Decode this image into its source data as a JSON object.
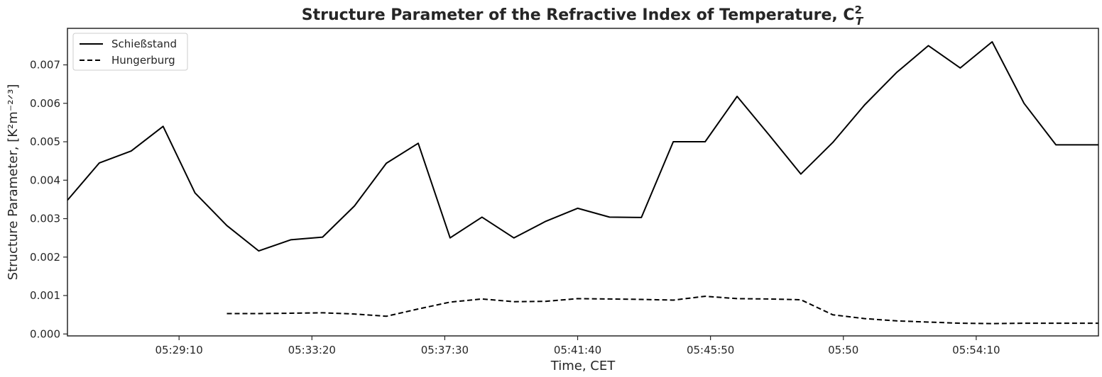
{
  "chart_data": {
    "type": "line",
    "title": "Structure Parameter of the Refractive Index of Temperature, C",
    "title_sup": "2",
    "title_sub": "T",
    "xlabel": "Time, CET",
    "ylabel": "Structure Parameter, [K²m⁻²ᐟ³]",
    "xlim": [
      "05:25:40",
      "05:58:00"
    ],
    "ylim": [
      -5e-05,
      0.00795
    ],
    "x_ticks": [
      {
        "t": "05:29:10",
        "label": "05:29:10"
      },
      {
        "t": "05:33:20",
        "label": "05:33:20"
      },
      {
        "t": "05:37:30",
        "label": "05:37:30"
      },
      {
        "t": "05:41:40",
        "label": "05:41:40"
      },
      {
        "t": "05:45:50",
        "label": "05:45:50"
      },
      {
        "t": "05:50:00",
        "label": "05:50"
      },
      {
        "t": "05:54:10",
        "label": "05:54:10"
      }
    ],
    "y_ticks": [
      {
        "v": 0.0,
        "label": "0.000"
      },
      {
        "v": 0.001,
        "label": "0.001"
      },
      {
        "v": 0.002,
        "label": "0.002"
      },
      {
        "v": 0.003,
        "label": "0.003"
      },
      {
        "v": 0.004,
        "label": "0.004"
      },
      {
        "v": 0.005,
        "label": "0.005"
      },
      {
        "v": 0.006,
        "label": "0.006"
      },
      {
        "v": 0.007,
        "label": "0.007"
      }
    ],
    "grid": false,
    "legend_position": "top-left",
    "series": [
      {
        "name": "Schießstand",
        "style": "solid",
        "color": "#000000",
        "x": [
          "05:25:40",
          "05:26:40",
          "05:27:40",
          "05:28:40",
          "05:29:40",
          "05:30:40",
          "05:31:40",
          "05:32:40",
          "05:33:40",
          "05:34:40",
          "05:35:40",
          "05:36:40",
          "05:37:40",
          "05:38:40",
          "05:39:40",
          "05:40:40",
          "05:41:40",
          "05:42:40",
          "05:43:40",
          "05:44:40",
          "05:45:40",
          "05:46:40",
          "05:47:40",
          "05:48:40",
          "05:49:40",
          "05:50:40",
          "05:51:40",
          "05:52:40",
          "05:53:40",
          "05:54:40",
          "05:55:40",
          "05:56:40",
          "05:57:40",
          "05:58:00"
        ],
        "y": [
          0.00348,
          0.00445,
          0.00476,
          0.0054,
          0.00367,
          0.00282,
          0.00216,
          0.00245,
          0.00252,
          0.00333,
          0.00444,
          0.00496,
          0.0025,
          0.00304,
          0.0025,
          0.00293,
          0.00327,
          0.00304,
          0.00303,
          0.005,
          0.005,
          0.00618,
          0.00518,
          0.00416,
          0.00498,
          0.00596,
          0.0068,
          0.0075,
          0.00692,
          0.0076,
          0.006,
          0.00492,
          0.00492,
          0.00492
        ]
      },
      {
        "name": "Hungerburg",
        "style": "dashed",
        "color": "#000000",
        "x": [
          "05:30:40",
          "05:31:40",
          "05:32:40",
          "05:33:40",
          "05:34:40",
          "05:35:40",
          "05:36:40",
          "05:37:40",
          "05:38:40",
          "05:39:40",
          "05:40:40",
          "05:41:40",
          "05:42:40",
          "05:43:40",
          "05:44:40",
          "05:45:40",
          "05:46:40",
          "05:47:40",
          "05:48:40",
          "05:49:40",
          "05:50:40",
          "05:51:40",
          "05:52:40",
          "05:53:40",
          "05:54:40",
          "05:55:40",
          "05:56:40",
          "05:57:40",
          "05:58:00"
        ],
        "y": [
          0.00053,
          0.00053,
          0.00054,
          0.00055,
          0.00052,
          0.00046,
          0.00065,
          0.00083,
          0.00091,
          0.00084,
          0.00085,
          0.00092,
          0.00091,
          0.0009,
          0.00088,
          0.00098,
          0.00092,
          0.00091,
          0.00089,
          0.0005,
          0.0004,
          0.00034,
          0.00031,
          0.00028,
          0.00027,
          0.00028,
          0.00028,
          0.00028,
          0.00028
        ]
      }
    ]
  }
}
